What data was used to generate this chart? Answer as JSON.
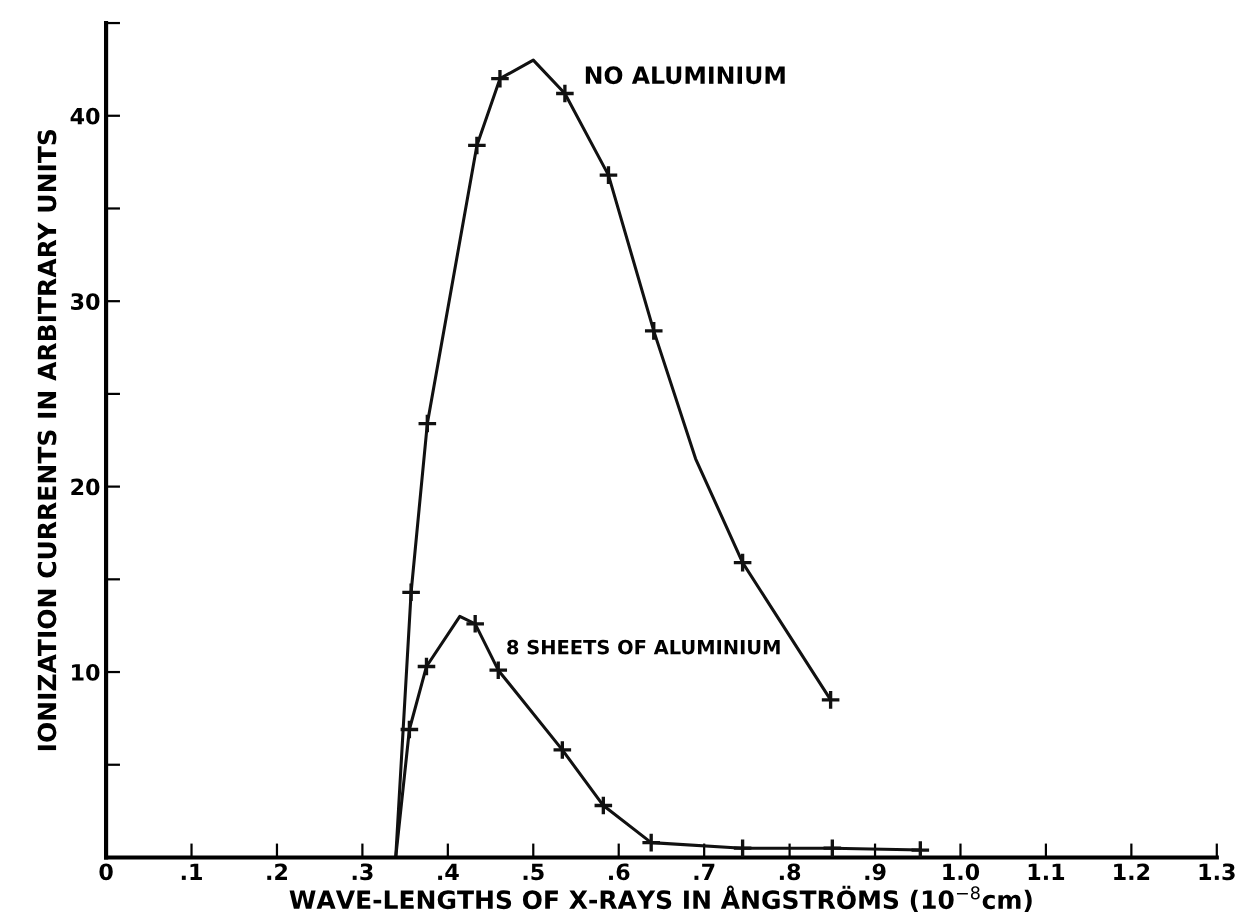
{
  "chart_data": {
    "type": "line",
    "xlabel": "WAVE-LENGTHS OF X-RAYS IN ÅNGSTRÖMS (10$^{−8}$cm)",
    "ylabel": "IONIZATION CURRENTS IN ARBITRARY UNITS",
    "xlim": [
      0,
      1.3
    ],
    "ylim": [
      0,
      45
    ],
    "xticks": [
      {
        "value": 0,
        "label": "0"
      },
      {
        "value": 0.1,
        "label": ".1"
      },
      {
        "value": 0.2,
        "label": ".2"
      },
      {
        "value": 0.3,
        "label": ".3"
      },
      {
        "value": 0.4,
        "label": ".4"
      },
      {
        "value": 0.5,
        "label": ".5"
      },
      {
        "value": 0.6,
        "label": ".6"
      },
      {
        "value": 0.7,
        "label": ".7"
      },
      {
        "value": 0.8,
        "label": ".8"
      },
      {
        "value": 0.9,
        "label": ".9"
      },
      {
        "value": 1.0,
        "label": "1.0"
      },
      {
        "value": 1.1,
        "label": "1.1"
      },
      {
        "value": 1.2,
        "label": "1.2"
      },
      {
        "value": 1.3,
        "label": "1.3"
      }
    ],
    "yticks": [
      {
        "value": 5,
        "label": null
      },
      10,
      {
        "value": 15,
        "label": null
      },
      20,
      {
        "value": 25,
        "label": null
      },
      30,
      {
        "value": 35,
        "label": null
      },
      40,
      {
        "value": 45,
        "label": null
      }
    ],
    "grid": false,
    "series": [
      {
        "type": "line",
        "marker": "none",
        "color": "#111111",
        "x": [
          0.339,
          0.357,
          0.376,
          0.434,
          0.461,
          0.5,
          0.537,
          0.588,
          0.641,
          0.69,
          0.745,
          0.848
        ],
        "values": [
          0,
          14.3,
          23.4,
          38.4,
          42.0,
          43.0,
          41.2,
          36.8,
          28.4,
          21.5,
          15.9,
          8.5
        ]
      },
      {
        "type": "scatter",
        "marker": "cross",
        "color": "#111111",
        "x": [
          0.357,
          0.376,
          0.434,
          0.461,
          0.537,
          0.588,
          0.641,
          0.745,
          0.848
        ],
        "values": [
          14.3,
          23.4,
          38.4,
          42.0,
          41.2,
          36.8,
          28.4,
          15.9,
          8.5
        ]
      },
      {
        "type": "line",
        "marker": "none",
        "color": "#111111",
        "x": [
          0.339,
          0.355,
          0.375,
          0.414,
          0.432,
          0.459,
          0.534,
          0.582,
          0.638,
          0.745,
          0.85,
          0.953
        ],
        "values": [
          0,
          6.9,
          10.3,
          13.0,
          12.6,
          10.1,
          5.8,
          2.8,
          0.8,
          0.5,
          0.5,
          0.4
        ]
      },
      {
        "type": "scatter",
        "marker": "cross",
        "color": "#111111",
        "x": [
          0.355,
          0.375,
          0.432,
          0.459,
          0.534,
          0.582,
          0.638,
          0.745,
          0.85,
          0.953
        ],
        "values": [
          6.9,
          10.3,
          12.6,
          10.1,
          5.8,
          2.8,
          0.8,
          0.5,
          0.5,
          0.4
        ]
      }
    ],
    "annotations": [
      "NO ALUMINIUM",
      "8 SHEETS OF ALUMINIUM"
    ]
  }
}
